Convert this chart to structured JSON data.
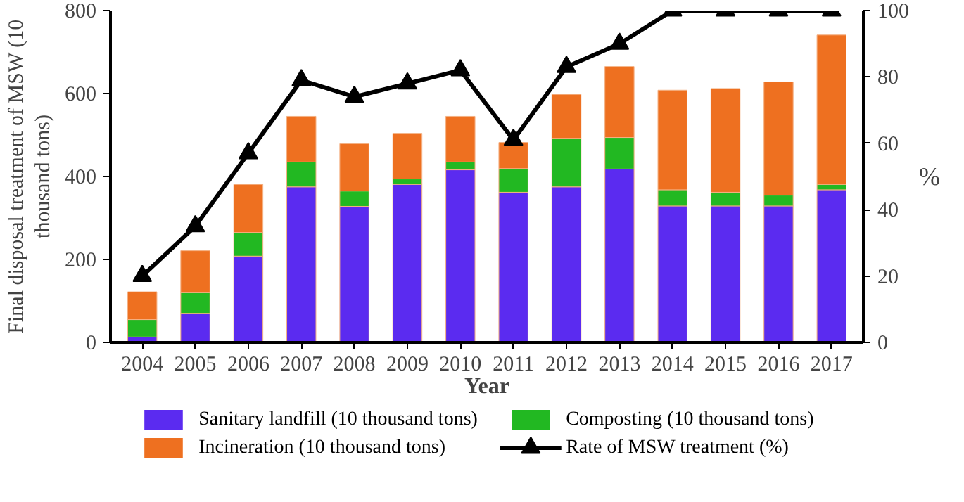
{
  "chart_data": {
    "type": "bar",
    "stacked": true,
    "xlabel": "Year",
    "ylabel": "Final disposal treatment of MSW (10\nthousand tons)",
    "y2label": "%",
    "categories": [
      "2004",
      "2005",
      "2006",
      "2007",
      "2008",
      "2009",
      "2010",
      "2011",
      "2012",
      "2013",
      "2014",
      "2015",
      "2016",
      "2017"
    ],
    "ylim": [
      0,
      800
    ],
    "yticks": [
      0,
      200,
      400,
      600,
      800
    ],
    "y2lim": [
      0,
      100
    ],
    "y2ticks": [
      0,
      20,
      40,
      60,
      80,
      100
    ],
    "grid": false,
    "legend": "bottom",
    "series": [
      {
        "name": "Sanitary landfill (10 thousand tons)",
        "color": "#5b2bf0",
        "values": [
          13,
          70,
          208,
          375,
          328,
          381,
          416,
          362,
          375,
          418,
          329,
          329,
          329,
          368
        ]
      },
      {
        "name": "Composting  (10 thousand tons)",
        "color": "#22b822",
        "values": [
          42,
          50,
          57,
          60,
          37,
          13,
          19,
          57,
          117,
          76,
          39,
          33,
          26,
          13
        ]
      },
      {
        "name": "Incineration  (10 thousand tons)",
        "color": "#ee7020",
        "values": [
          67,
          101,
          116,
          110,
          114,
          110,
          110,
          63,
          106,
          171,
          240,
          250,
          273,
          360
        ]
      },
      {
        "name": "Rate of MSW treatment (%)",
        "type": "line",
        "axis": "y2",
        "color": "#000000",
        "marker": "triangle",
        "values": [
          20,
          35,
          57,
          79,
          74,
          78,
          82,
          61,
          83,
          90,
          100,
          100,
          100,
          100
        ]
      }
    ]
  }
}
